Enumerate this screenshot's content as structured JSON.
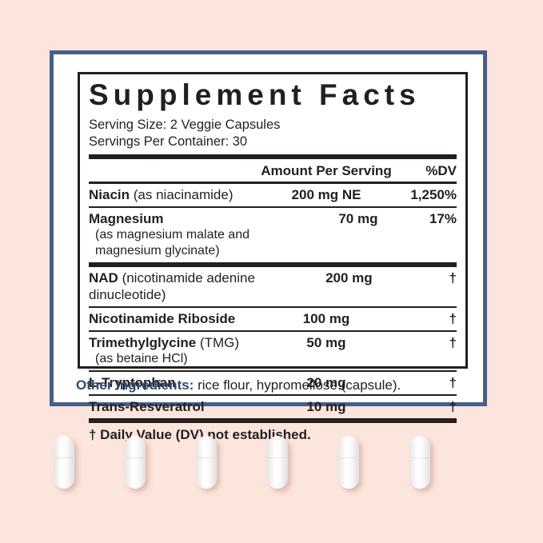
{
  "page": {
    "background_color": "#fce5dd",
    "panel_border_color": "#465f88"
  },
  "label": {
    "title": "Supplement Facts",
    "serving_size": "Serving Size: 2 Veggie Capsules",
    "servings_per_container": "Servings Per Container: 30",
    "header": {
      "amount": "Amount Per Serving",
      "dv": "%DV"
    },
    "rows": [
      {
        "bold": "Niacin",
        "rest": " (as niacinamide)",
        "sub": "",
        "amount": "200 mg NE",
        "dv": "1,250%",
        "divider": "thin"
      },
      {
        "bold": "Magnesium",
        "rest": "",
        "sub": "(as magnesium malate and magnesium glycinate)",
        "amount": "70 mg",
        "dv": "17%",
        "divider": "thick"
      },
      {
        "bold": "NAD",
        "rest": " (nicotinamide adenine dinucleotide)",
        "sub": "",
        "amount": "200 mg",
        "dv": "†",
        "divider": "thin"
      },
      {
        "bold": "Nicotinamide Riboside",
        "rest": "",
        "sub": "",
        "amount": "100 mg",
        "dv": "†",
        "divider": "thin"
      },
      {
        "bold": "Trimethylglycine",
        "rest": " (TMG)",
        "sub": "(as betaine HCl)",
        "amount": "50 mg",
        "dv": "†",
        "divider": "thin"
      },
      {
        "bold": "L-Tryptophan",
        "rest": "",
        "sub": "",
        "amount": "20 mg",
        "dv": "†",
        "divider": "thin"
      },
      {
        "bold": "Trans-Resveratrol",
        "rest": "",
        "sub": "",
        "amount": "10 mg",
        "dv": "†",
        "divider": "thick"
      }
    ],
    "footnote": "† Daily Value (DV) not established.",
    "other_ingredients": {
      "label": "Other Ingredients:",
      "text": " rice flour, hypromellose (capsule)."
    },
    "text_color": "#231f20",
    "accent_color": "#2e4b6e"
  },
  "capsules": {
    "count": 6,
    "color": "#ffffff"
  }
}
